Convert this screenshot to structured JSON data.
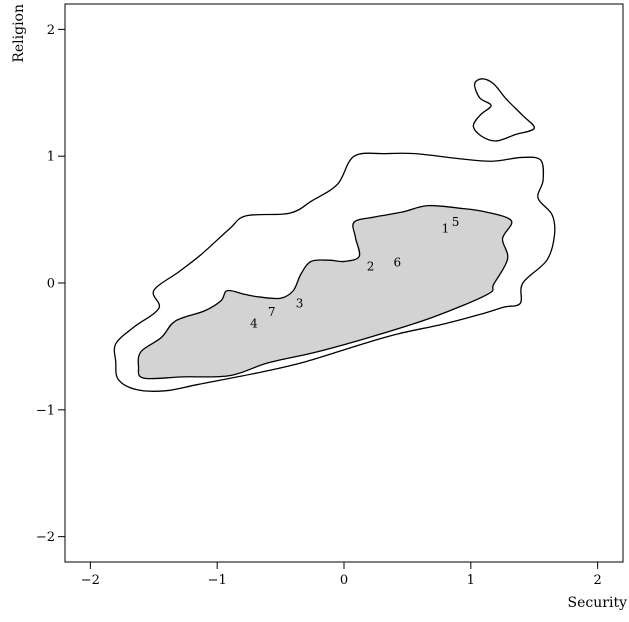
{
  "chart_data": {
    "type": "contour",
    "title": "",
    "xlabel": "Security",
    "ylabel": "Religion",
    "xlim": [
      -2.2,
      2.2
    ],
    "ylim": [
      -2.2,
      2.2
    ],
    "xticks": [
      -2,
      -1,
      0,
      1,
      2
    ],
    "yticks": [
      -2,
      -1,
      0,
      1,
      2
    ],
    "xtick_labels": [
      "−2",
      "−1",
      "0",
      "1",
      "2"
    ],
    "ytick_labels": [
      "−2",
      "−1",
      "0",
      "1",
      "2"
    ],
    "grid": false,
    "colors": {
      "inner_fill": "#d3d3d3",
      "line": "#000000",
      "background": "#ffffff"
    },
    "contours": [
      {
        "level": "outer",
        "filled": false,
        "polygons": [
          [
            [
              -1.8,
              -0.62
            ],
            [
              -1.8,
              -0.48
            ],
            [
              -1.66,
              -0.35
            ],
            [
              -1.46,
              -0.2
            ],
            [
              -1.5,
              -0.06
            ],
            [
              -1.3,
              0.09
            ],
            [
              -1.12,
              0.23
            ],
            [
              -0.9,
              0.43
            ],
            [
              -0.77,
              0.53
            ],
            [
              -0.43,
              0.55
            ],
            [
              -0.25,
              0.65
            ],
            [
              -0.05,
              0.78
            ],
            [
              0.08,
              1.0
            ],
            [
              0.33,
              1.02
            ],
            [
              0.56,
              1.02
            ],
            [
              0.91,
              0.98
            ],
            [
              1.17,
              0.96
            ],
            [
              1.4,
              0.99
            ],
            [
              1.55,
              0.97
            ],
            [
              1.57,
              0.81
            ],
            [
              1.53,
              0.67
            ],
            [
              1.64,
              0.54
            ],
            [
              1.66,
              0.38
            ],
            [
              1.6,
              0.18
            ],
            [
              1.41,
              0.0
            ],
            [
              1.39,
              -0.16
            ],
            [
              1.26,
              -0.19
            ],
            [
              1.1,
              -0.24
            ],
            [
              0.8,
              -0.32
            ],
            [
              0.43,
              -0.4
            ],
            [
              0.15,
              -0.48
            ],
            [
              -0.3,
              -0.62
            ],
            [
              -0.64,
              -0.7
            ],
            [
              -1.15,
              -0.8
            ],
            [
              -1.41,
              -0.85
            ],
            [
              -1.64,
              -0.84
            ],
            [
              -1.78,
              -0.76
            ]
          ],
          [
            [
              1.09,
              1.61
            ],
            [
              1.03,
              1.57
            ],
            [
              1.07,
              1.46
            ],
            [
              1.16,
              1.4
            ],
            [
              1.08,
              1.33
            ],
            [
              1.02,
              1.24
            ],
            [
              1.08,
              1.16
            ],
            [
              1.2,
              1.12
            ],
            [
              1.35,
              1.17
            ],
            [
              1.5,
              1.22
            ],
            [
              1.41,
              1.32
            ],
            [
              1.28,
              1.45
            ],
            [
              1.18,
              1.57
            ]
          ]
        ]
      },
      {
        "level": "inner",
        "filled": true,
        "polygons": [
          [
            [
              -1.62,
              -0.66
            ],
            [
              -1.6,
              -0.54
            ],
            [
              -1.44,
              -0.43
            ],
            [
              -1.33,
              -0.3
            ],
            [
              -1.1,
              -0.22
            ],
            [
              -0.97,
              -0.14
            ],
            [
              -0.92,
              -0.06
            ],
            [
              -0.78,
              -0.09
            ],
            [
              -0.67,
              -0.11
            ],
            [
              -0.5,
              -0.12
            ],
            [
              -0.4,
              -0.06
            ],
            [
              -0.34,
              0.07
            ],
            [
              -0.26,
              0.17
            ],
            [
              -0.12,
              0.18
            ],
            [
              0.0,
              0.17
            ],
            [
              0.12,
              0.21
            ],
            [
              0.09,
              0.36
            ],
            [
              0.08,
              0.48
            ],
            [
              0.24,
              0.52
            ],
            [
              0.46,
              0.56
            ],
            [
              0.66,
              0.61
            ],
            [
              0.91,
              0.59
            ],
            [
              1.12,
              0.56
            ],
            [
              1.32,
              0.49
            ],
            [
              1.25,
              0.35
            ],
            [
              1.29,
              0.19
            ],
            [
              1.18,
              -0.01
            ],
            [
              1.13,
              -0.09
            ],
            [
              0.7,
              -0.27
            ],
            [
              0.23,
              -0.42
            ],
            [
              -0.2,
              -0.54
            ],
            [
              -0.6,
              -0.63
            ],
            [
              -0.9,
              -0.73
            ],
            [
              -1.27,
              -0.74
            ],
            [
              -1.58,
              -0.75
            ]
          ]
        ]
      }
    ],
    "points": [
      {
        "label": "1",
        "x": 0.8,
        "y": 0.43
      },
      {
        "label": "5",
        "x": 0.88,
        "y": 0.48
      },
      {
        "label": "2",
        "x": 0.21,
        "y": 0.13
      },
      {
        "label": "6",
        "x": 0.42,
        "y": 0.16
      },
      {
        "label": "3",
        "x": -0.35,
        "y": -0.16
      },
      {
        "label": "7",
        "x": -0.57,
        "y": -0.23
      },
      {
        "label": "4",
        "x": -0.71,
        "y": -0.32
      }
    ]
  }
}
